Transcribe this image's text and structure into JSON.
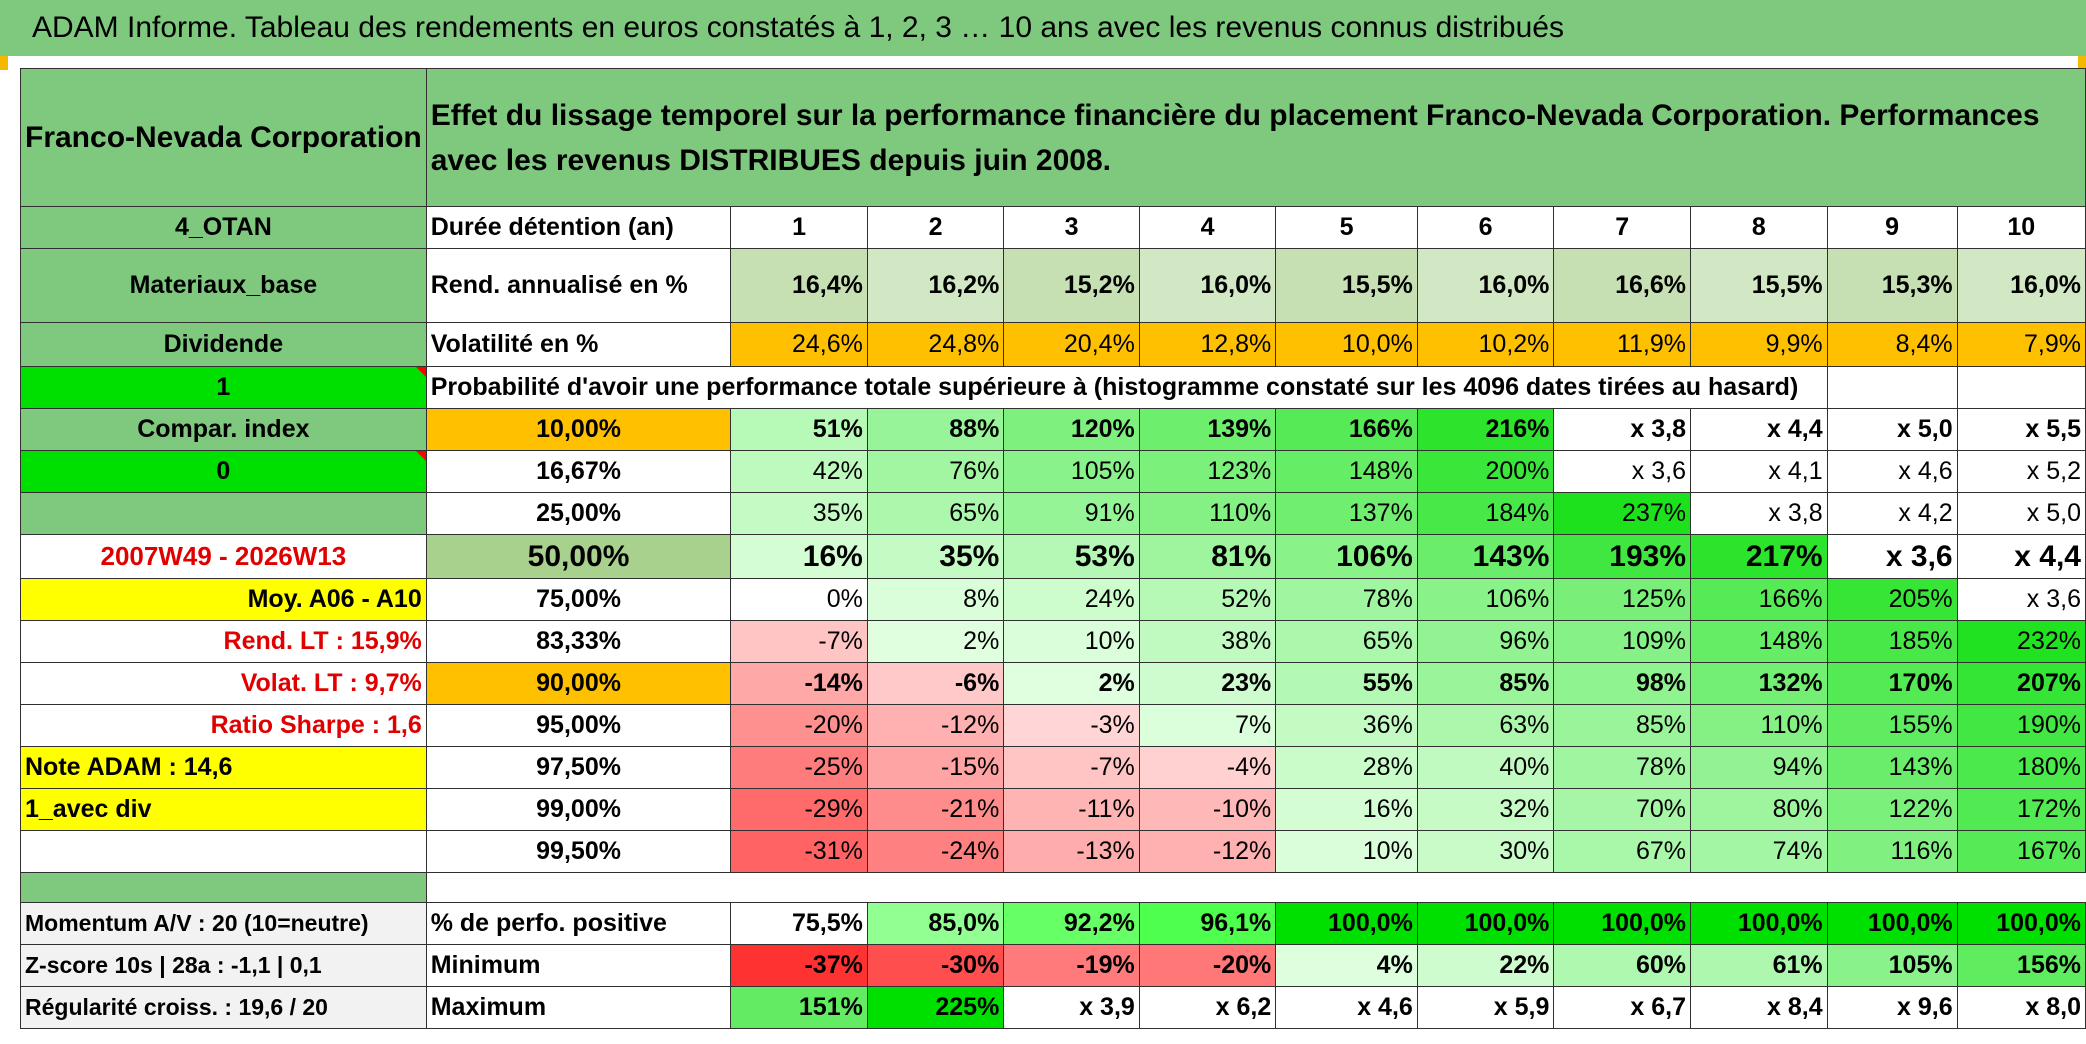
{
  "header": {
    "title": "ADAM Informe. Tableau des rendements en euros constatés à 1, 2, 3 … 10 ans avec les revenus connus distribués"
  },
  "company": "Franco-Nevada Corporation",
  "description": "Effet du lissage temporel sur la performance financière du placement Franco-Nevada Corporation. Performances avec les revenus DISTRIBUES depuis juin 2008.",
  "left_labels": {
    "otan": "4_OTAN",
    "sector": "Materiaux_base",
    "dividende": "Dividende",
    "one": "1",
    "compar": "Compar. index",
    "zero": "0",
    "period": "2007W49 - 2026W13",
    "moy": "Moy. A06 - A10",
    "rend_lt": "Rend. LT :    15,9%",
    "volat_lt": "Volat. LT :    9,7%",
    "sharpe": "Ratio Sharpe :    1,6",
    "note": "Note ADAM : 14,6",
    "avec_div": "1_avec div"
  },
  "stats_header": {
    "label": "Durée détention (an)",
    "years": [
      "1",
      "2",
      "3",
      "4",
      "5",
      "6",
      "7",
      "8",
      "9",
      "10"
    ]
  },
  "rend": {
    "label": "Rend. annualisé en %",
    "values": [
      "16,4%",
      "16,2%",
      "15,2%",
      "16,0%",
      "15,5%",
      "16,0%",
      "16,6%",
      "15,5%",
      "15,3%",
      "16,0%"
    ]
  },
  "volat": {
    "label": "Volatilité en %",
    "values": [
      "24,6%",
      "24,8%",
      "20,4%",
      "12,8%",
      "10,0%",
      "10,2%",
      "11,9%",
      "9,9%",
      "8,4%",
      "7,9%"
    ]
  },
  "prob_title": "Probabilité d'avoir une performance totale supérieure à (histogramme constaté sur les 4096 dates tirées au hasard)",
  "prob_rows": [
    {
      "pct": "10,00%",
      "values": [
        "51%",
        "88%",
        "120%",
        "139%",
        "166%",
        "216%",
        "x 3,8",
        "x 4,4",
        "x 5,0",
        "x 5,5"
      ]
    },
    {
      "pct": "16,67%",
      "values": [
        "42%",
        "76%",
        "105%",
        "123%",
        "148%",
        "200%",
        "x 3,6",
        "x 4,1",
        "x 4,6",
        "x 5,2"
      ]
    },
    {
      "pct": "25,00%",
      "values": [
        "35%",
        "65%",
        "91%",
        "110%",
        "137%",
        "184%",
        "237%",
        "x 3,8",
        "x 4,2",
        "x 5,0"
      ]
    },
    {
      "pct": "50,00%",
      "values": [
        "16%",
        "35%",
        "53%",
        "81%",
        "106%",
        "143%",
        "193%",
        "217%",
        "x 3,6",
        "x 4,4"
      ]
    },
    {
      "pct": "75,00%",
      "values": [
        "0%",
        "8%",
        "24%",
        "52%",
        "78%",
        "106%",
        "125%",
        "166%",
        "205%",
        "x 3,6"
      ]
    },
    {
      "pct": "83,33%",
      "values": [
        "-7%",
        "2%",
        "10%",
        "38%",
        "65%",
        "96%",
        "109%",
        "148%",
        "185%",
        "232%"
      ]
    },
    {
      "pct": "90,00%",
      "values": [
        "-14%",
        "-6%",
        "2%",
        "23%",
        "55%",
        "85%",
        "98%",
        "132%",
        "170%",
        "207%"
      ]
    },
    {
      "pct": "95,00%",
      "values": [
        "-20%",
        "-12%",
        "-3%",
        "7%",
        "36%",
        "63%",
        "85%",
        "110%",
        "155%",
        "190%"
      ]
    },
    {
      "pct": "97,50%",
      "values": [
        "-25%",
        "-15%",
        "-7%",
        "-4%",
        "28%",
        "40%",
        "78%",
        "94%",
        "143%",
        "180%"
      ]
    },
    {
      "pct": "99,00%",
      "values": [
        "-29%",
        "-21%",
        "-11%",
        "-10%",
        "16%",
        "32%",
        "70%",
        "80%",
        "122%",
        "172%"
      ]
    },
    {
      "pct": "99,50%",
      "values": [
        "-31%",
        "-24%",
        "-13%",
        "-12%",
        "10%",
        "30%",
        "67%",
        "74%",
        "116%",
        "167%"
      ]
    }
  ],
  "bottom": {
    "momentum": "Momentum A/V : 20 (10=neutre)",
    "zscore": "Z-score 10s | 28a : -1,1 | 0,1",
    "regularite": "Régularité croiss. : 19,6 / 20",
    "perf_pos": {
      "label": "% de perfo. positive",
      "values": [
        "75,5%",
        "85,0%",
        "92,2%",
        "96,1%",
        "100,0%",
        "100,0%",
        "100,0%",
        "100,0%",
        "100,0%",
        "100,0%"
      ]
    },
    "minimum": {
      "label": "Minimum",
      "values": [
        "-37%",
        "-30%",
        "-19%",
        "-20%",
        "4%",
        "22%",
        "60%",
        "61%",
        "105%",
        "156%"
      ]
    },
    "maximum": {
      "label": "Maximum",
      "values": [
        "151%",
        "225%",
        "x 3,9",
        "x 6,2",
        "x 4,6",
        "x 5,9",
        "x 6,7",
        "x 8,4",
        "x 9,6",
        "x 8,0"
      ]
    }
  },
  "colors": {
    "header_green": "#7fc97f",
    "bright_green": "#00e000",
    "yellow": "#ffff00",
    "orange": "#ffc000",
    "text_red": "#e00000",
    "rend_green": "#c6e0b4"
  }
}
